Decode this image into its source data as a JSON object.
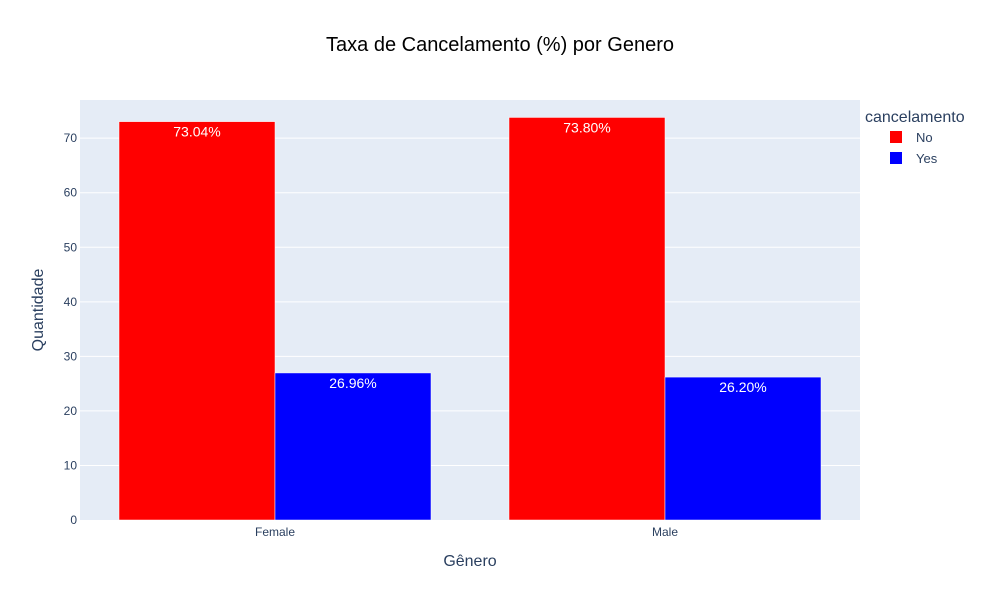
{
  "chart_data": {
    "type": "bar",
    "title": "Taxa de Cancelamento (%) por Genero",
    "xlabel": "Gênero",
    "ylabel": "Quantidade",
    "categories": [
      "Female",
      "Male"
    ],
    "series": [
      {
        "name": "No",
        "color": "#ff0000",
        "values": [
          73.04,
          73.8
        ],
        "labels": [
          "73.04%",
          "73.80%"
        ]
      },
      {
        "name": "Yes",
        "color": "#0000ff",
        "values": [
          26.96,
          26.2
        ],
        "labels": [
          "26.96%",
          "26.20%"
        ]
      }
    ],
    "ylim": [
      0,
      77
    ],
    "yticks": [
      0,
      10,
      20,
      30,
      40,
      50,
      60,
      70
    ],
    "legend": {
      "title": "cancelamento",
      "placement": "top-right"
    },
    "grid": true,
    "plot_background": "#e5ecf6"
  }
}
